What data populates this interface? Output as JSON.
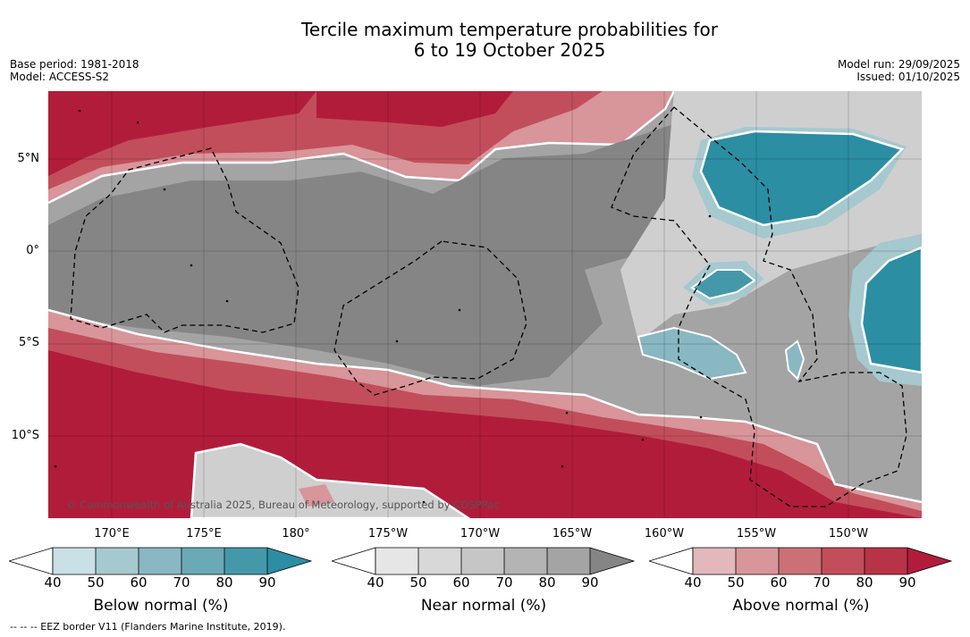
{
  "title": {
    "line1": "Tercile maximum temperature probabilities for",
    "line2": "6 to 19 October 2025"
  },
  "meta": {
    "base_period": "Base period: 1981-2018",
    "model": "Model: ACCESS-S2",
    "model_run": "Model run: 29/09/2025",
    "issued": "Issued: 01/10/2025"
  },
  "map": {
    "lat_labels": [
      "5°N",
      "0°",
      "5°S",
      "10°S"
    ],
    "lon_labels": [
      "170°E",
      "175°E",
      "180°",
      "175°W",
      "170°W",
      "165°W",
      "160°W",
      "155°W",
      "150°W"
    ],
    "credit": "© Commonwealth of Australia 2025, Bureau of Meteorology, supported by COSPPac"
  },
  "colorbars": [
    {
      "label": "Below normal (%)",
      "ticks": [
        "40",
        "50",
        "60",
        "70",
        "80",
        "90"
      ],
      "colors": [
        "#c9e0e6",
        "#a6c8cf",
        "#89b7c2",
        "#6aa9b6",
        "#4598aa",
        "#2b8ea3"
      ]
    },
    {
      "label": "Near normal (%)",
      "ticks": [
        "40",
        "50",
        "60",
        "70",
        "80",
        "90"
      ],
      "colors": [
        "#e6e6e6",
        "#d8d8d8",
        "#c6c6c6",
        "#b4b4b4",
        "#a4a4a4",
        "#858585"
      ]
    },
    {
      "label": "Above normal (%)",
      "ticks": [
        "40",
        "50",
        "60",
        "70",
        "80",
        "90"
      ],
      "colors": [
        "#e2b8bc",
        "#d8959a",
        "#cc7078",
        "#c24e5b",
        "#b83347",
        "#b21c3b"
      ]
    }
  ],
  "eez_note": "--  --  -- EEZ border V11 (Flanders Marine Institute, 2019).",
  "colors": {
    "above_high": "#b21c3b",
    "above_mid": "#c24e5b",
    "above_low": "#d8959a",
    "near_high": "#858585",
    "near_mid": "#a4a4a4",
    "near_low": "#cfcfcf",
    "below_high": "#2b8ea3",
    "below_mid": "#6aa9b6",
    "below_low": "#a6c8cf"
  }
}
